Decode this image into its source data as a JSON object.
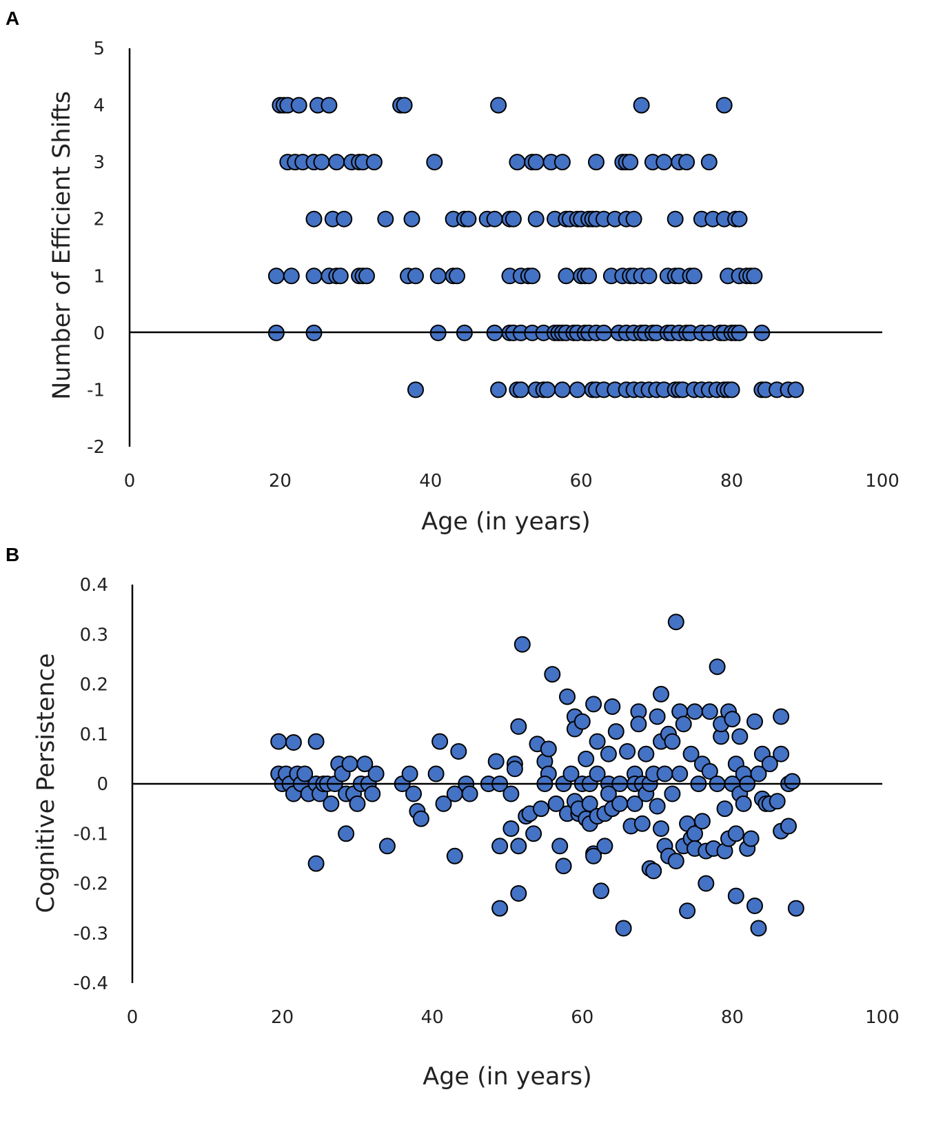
{
  "chart_data": [
    {
      "panel_label": "A",
      "type": "scatter",
      "title": "",
      "xlabel": "Age (in years)",
      "ylabel": "Number of Efficient Shifts",
      "xlim": [
        0,
        100
      ],
      "ylim": [
        -2,
        5
      ],
      "xticks": [
        "0",
        "20",
        "40",
        "60",
        "80",
        "100"
      ],
      "yticks": [
        "5",
        "4",
        "3",
        "2",
        "1",
        "0",
        "-1",
        "-2"
      ],
      "grid": false,
      "marker_color": "#4472c4",
      "points": [
        [
          20,
          4
        ],
        [
          20.5,
          4
        ],
        [
          21,
          4
        ],
        [
          22.5,
          4
        ],
        [
          25,
          4
        ],
        [
          26.5,
          4
        ],
        [
          36,
          4
        ],
        [
          36.5,
          4
        ],
        [
          49,
          4
        ],
        [
          68,
          4
        ],
        [
          79,
          4
        ],
        [
          21,
          3
        ],
        [
          22,
          3
        ],
        [
          23,
          3
        ],
        [
          24.5,
          3
        ],
        [
          25.5,
          3
        ],
        [
          27.5,
          3
        ],
        [
          29.5,
          3
        ],
        [
          30.5,
          3
        ],
        [
          31,
          3
        ],
        [
          32.5,
          3
        ],
        [
          40.5,
          3
        ],
        [
          51.5,
          3
        ],
        [
          53.5,
          3
        ],
        [
          54,
          3
        ],
        [
          56,
          3
        ],
        [
          57.5,
          3
        ],
        [
          62,
          3
        ],
        [
          65.5,
          3
        ],
        [
          66,
          3
        ],
        [
          66.5,
          3
        ],
        [
          69.5,
          3
        ],
        [
          71,
          3
        ],
        [
          73,
          3
        ],
        [
          74,
          3
        ],
        [
          77,
          3
        ],
        [
          24.5,
          2
        ],
        [
          27,
          2
        ],
        [
          28.5,
          2
        ],
        [
          34,
          2
        ],
        [
          37.5,
          2
        ],
        [
          43,
          2
        ],
        [
          44.5,
          2
        ],
        [
          45,
          2
        ],
        [
          47.5,
          2
        ],
        [
          48.5,
          2
        ],
        [
          50.5,
          2
        ],
        [
          51,
          2
        ],
        [
          54,
          2
        ],
        [
          56.5,
          2
        ],
        [
          58,
          2
        ],
        [
          58.5,
          2
        ],
        [
          59.5,
          2
        ],
        [
          60,
          2
        ],
        [
          61,
          2
        ],
        [
          61.5,
          2
        ],
        [
          62,
          2
        ],
        [
          63,
          2
        ],
        [
          64.5,
          2
        ],
        [
          66,
          2
        ],
        [
          67,
          2
        ],
        [
          72.5,
          2
        ],
        [
          76,
          2
        ],
        [
          77.5,
          2
        ],
        [
          79,
          2
        ],
        [
          80.5,
          2
        ],
        [
          81,
          2
        ],
        [
          19.5,
          1
        ],
        [
          21.5,
          1
        ],
        [
          24.5,
          1
        ],
        [
          26.5,
          1
        ],
        [
          27.5,
          1
        ],
        [
          28,
          1
        ],
        [
          30.5,
          1
        ],
        [
          31,
          1
        ],
        [
          31.5,
          1
        ],
        [
          37,
          1
        ],
        [
          38,
          1
        ],
        [
          41,
          1
        ],
        [
          43,
          1
        ],
        [
          43.5,
          1
        ],
        [
          50.5,
          1
        ],
        [
          52,
          1
        ],
        [
          53,
          1
        ],
        [
          53.5,
          1
        ],
        [
          58,
          1
        ],
        [
          60,
          1
        ],
        [
          60.5,
          1
        ],
        [
          61,
          1
        ],
        [
          64,
          1
        ],
        [
          65.5,
          1
        ],
        [
          66.5,
          1
        ],
        [
          67,
          1
        ],
        [
          68,
          1
        ],
        [
          69,
          1
        ],
        [
          71.5,
          1
        ],
        [
          72.5,
          1
        ],
        [
          73,
          1
        ],
        [
          74.5,
          1
        ],
        [
          75,
          1
        ],
        [
          79.5,
          1
        ],
        [
          81,
          1
        ],
        [
          82,
          1
        ],
        [
          82.5,
          1
        ],
        [
          83,
          1
        ],
        [
          19.5,
          0
        ],
        [
          24.5,
          0
        ],
        [
          41,
          0
        ],
        [
          44.5,
          0
        ],
        [
          48.5,
          0
        ],
        [
          50.5,
          0
        ],
        [
          51,
          0
        ],
        [
          52,
          0
        ],
        [
          53.5,
          0
        ],
        [
          55,
          0
        ],
        [
          56.5,
          0
        ],
        [
          57,
          0
        ],
        [
          57.5,
          0
        ],
        [
          58,
          0
        ],
        [
          59,
          0
        ],
        [
          59.5,
          0
        ],
        [
          60.5,
          0
        ],
        [
          61,
          0
        ],
        [
          62,
          0
        ],
        [
          63,
          0
        ],
        [
          65,
          0
        ],
        [
          66,
          0
        ],
        [
          67,
          0
        ],
        [
          68,
          0
        ],
        [
          68.5,
          0
        ],
        [
          69.5,
          0
        ],
        [
          70,
          0
        ],
        [
          71.5,
          0
        ],
        [
          72,
          0
        ],
        [
          73,
          0
        ],
        [
          74,
          0
        ],
        [
          74.5,
          0
        ],
        [
          76,
          0
        ],
        [
          77,
          0
        ],
        [
          78.5,
          0
        ],
        [
          79,
          0
        ],
        [
          80,
          0
        ],
        [
          80.5,
          0
        ],
        [
          81,
          0
        ],
        [
          84,
          0
        ],
        [
          38,
          -1
        ],
        [
          49,
          -1
        ],
        [
          51.5,
          -1
        ],
        [
          52,
          -1
        ],
        [
          54,
          -1
        ],
        [
          55,
          -1
        ],
        [
          55.5,
          -1
        ],
        [
          57.5,
          -1
        ],
        [
          59.5,
          -1
        ],
        [
          61.5,
          -1
        ],
        [
          62,
          -1
        ],
        [
          63,
          -1
        ],
        [
          64.5,
          -1
        ],
        [
          66,
          -1
        ],
        [
          67,
          -1
        ],
        [
          68,
          -1
        ],
        [
          69,
          -1
        ],
        [
          70,
          -1
        ],
        [
          71,
          -1
        ],
        [
          72.5,
          -1
        ],
        [
          73,
          -1
        ],
        [
          73.5,
          -1
        ],
        [
          75,
          -1
        ],
        [
          76,
          -1
        ],
        [
          77,
          -1
        ],
        [
          78,
          -1
        ],
        [
          79,
          -1
        ],
        [
          79.5,
          -1
        ],
        [
          80,
          -1
        ],
        [
          84,
          -1
        ],
        [
          84.5,
          -1
        ],
        [
          86,
          -1
        ],
        [
          87.5,
          -1
        ],
        [
          88.5,
          -1
        ]
      ]
    },
    {
      "panel_label": "B",
      "type": "scatter",
      "title": "",
      "xlabel": "Age (in years)",
      "ylabel": "Cognitive Persistence",
      "xlim": [
        0,
        100
      ],
      "ylim": [
        -0.4,
        0.4
      ],
      "xticks": [
        "0",
        "20",
        "40",
        "60",
        "80",
        "100"
      ],
      "yticks": [
        "0.4",
        "0.3",
        "0.2",
        "0.1",
        "0",
        "-0.1",
        "-0.2",
        "-0.3",
        "-0.4"
      ],
      "grid": false,
      "marker_color": "#4472c4",
      "points": [
        [
          19.5,
          0.085
        ],
        [
          21.5,
          0.083
        ],
        [
          24.5,
          0.085
        ],
        [
          19.5,
          0.02
        ],
        [
          20,
          0.0
        ],
        [
          20.5,
          0.02
        ],
        [
          21,
          0.0
        ],
        [
          21.5,
          -0.02
        ],
        [
          22,
          0.02
        ],
        [
          22.5,
          0.0
        ],
        [
          23,
          0.02
        ],
        [
          23.5,
          -0.02
        ],
        [
          24.5,
          0.0
        ],
        [
          25,
          -0.02
        ],
        [
          25.5,
          0.0
        ],
        [
          26,
          0.0
        ],
        [
          26.5,
          -0.04
        ],
        [
          27,
          0.0
        ],
        [
          27.5,
          0.04
        ],
        [
          28,
          0.02
        ],
        [
          28.5,
          -0.02
        ],
        [
          29,
          0.04
        ],
        [
          29.5,
          -0.02
        ],
        [
          30,
          -0.04
        ],
        [
          30.5,
          0.0
        ],
        [
          31,
          0.04
        ],
        [
          31.5,
          0.0
        ],
        [
          32,
          -0.02
        ],
        [
          32.5,
          0.02
        ],
        [
          24.5,
          -0.16
        ],
        [
          28.5,
          -0.1
        ],
        [
          34,
          -0.125
        ],
        [
          36,
          0.0
        ],
        [
          37,
          0.02
        ],
        [
          37.5,
          -0.02
        ],
        [
          38,
          -0.055
        ],
        [
          38.5,
          -0.07
        ],
        [
          40.5,
          0.02
        ],
        [
          41,
          0.085
        ],
        [
          41.5,
          -0.04
        ],
        [
          43,
          -0.02
        ],
        [
          43.5,
          0.065
        ],
        [
          44.5,
          0.0
        ],
        [
          45,
          -0.02
        ],
        [
          43,
          -0.145
        ],
        [
          47.5,
          0.0
        ],
        [
          48.5,
          0.045
        ],
        [
          49,
          0.0
        ],
        [
          49,
          -0.125
        ],
        [
          49,
          -0.25
        ],
        [
          50.5,
          -0.09
        ],
        [
          50.5,
          -0.02
        ],
        [
          51,
          0.04
        ],
        [
          51,
          0.03
        ],
        [
          51.5,
          0.115
        ],
        [
          51.5,
          -0.125
        ],
        [
          51.5,
          -0.22
        ],
        [
          52,
          0.28
        ],
        [
          52.5,
          -0.065
        ],
        [
          53,
          -0.06
        ],
        [
          53.5,
          -0.1
        ],
        [
          54,
          0.08
        ],
        [
          54.5,
          -0.05
        ],
        [
          55,
          0.045
        ],
        [
          55.5,
          0.02
        ],
        [
          55,
          0.0
        ],
        [
          55.5,
          0.07
        ],
        [
          56,
          0.22
        ],
        [
          56.5,
          -0.04
        ],
        [
          57,
          -0.125
        ],
        [
          57.5,
          -0.165
        ],
        [
          57.5,
          0.0
        ],
        [
          58,
          0.175
        ],
        [
          58,
          -0.06
        ],
        [
          58.5,
          0.02
        ],
        [
          59,
          0.135
        ],
        [
          59,
          0.11
        ],
        [
          59,
          -0.035
        ],
        [
          59.5,
          -0.06
        ],
        [
          59.5,
          -0.05
        ],
        [
          60,
          0.125
        ],
        [
          60,
          0.0
        ],
        [
          60.5,
          -0.07
        ],
        [
          60.5,
          0.05
        ],
        [
          61,
          -0.04
        ],
        [
          61,
          0.0
        ],
        [
          61,
          -0.08
        ],
        [
          61.5,
          0.16
        ],
        [
          61.5,
          -0.14
        ],
        [
          61.5,
          -0.145
        ],
        [
          62,
          0.02
        ],
        [
          62,
          -0.065
        ],
        [
          62.5,
          -0.215
        ],
        [
          62,
          0.085
        ],
        [
          63,
          -0.06
        ],
        [
          63,
          -0.125
        ],
        [
          63.5,
          0.06
        ],
        [
          63.5,
          0.0
        ],
        [
          63.5,
          -0.02
        ],
        [
          64,
          -0.05
        ],
        [
          64,
          0.155
        ],
        [
          64.5,
          0.105
        ],
        [
          65,
          -0.04
        ],
        [
          65,
          0.0
        ],
        [
          65.5,
          -0.29
        ],
        [
          66,
          0.065
        ],
        [
          66.5,
          -0.085
        ],
        [
          67,
          0.02
        ],
        [
          67,
          0.0
        ],
        [
          67,
          -0.04
        ],
        [
          67.5,
          0.145
        ],
        [
          67.5,
          0.12
        ],
        [
          68,
          -0.08
        ],
        [
          68,
          0.0
        ],
        [
          68.5,
          0.06
        ],
        [
          68.5,
          -0.02
        ],
        [
          69,
          0.0
        ],
        [
          69,
          -0.17
        ],
        [
          69.5,
          -0.175
        ],
        [
          69.5,
          0.02
        ],
        [
          70,
          0.135
        ],
        [
          70,
          -0.045
        ],
        [
          70.5,
          0.085
        ],
        [
          70.5,
          -0.09
        ],
        [
          70.5,
          0.18
        ],
        [
          71,
          -0.125
        ],
        [
          71,
          0.02
        ],
        [
          71.5,
          -0.145
        ],
        [
          71.5,
          0.1
        ],
        [
          72,
          0.085
        ],
        [
          72,
          -0.02
        ],
        [
          72.5,
          0.325
        ],
        [
          72.5,
          -0.155
        ],
        [
          73,
          0.145
        ],
        [
          73,
          0.02
        ],
        [
          73.5,
          0.12
        ],
        [
          73.5,
          -0.125
        ],
        [
          74,
          -0.255
        ],
        [
          74,
          -0.08
        ],
        [
          74.5,
          -0.11
        ],
        [
          74.5,
          0.06
        ],
        [
          75,
          -0.1
        ],
        [
          75,
          0.145
        ],
        [
          75,
          -0.13
        ],
        [
          75.5,
          0.0
        ],
        [
          76,
          0.04
        ],
        [
          76,
          -0.075
        ],
        [
          76.5,
          -0.2
        ],
        [
          76.5,
          -0.135
        ],
        [
          77,
          0.025
        ],
        [
          77,
          0.145
        ],
        [
          77.5,
          -0.13
        ],
        [
          78,
          0.235
        ],
        [
          78,
          0.0
        ],
        [
          78.5,
          0.095
        ],
        [
          78.5,
          0.12
        ],
        [
          79,
          -0.05
        ],
        [
          79,
          -0.135
        ],
        [
          79.5,
          -0.11
        ],
        [
          79.5,
          0.145
        ],
        [
          80,
          0.0
        ],
        [
          80,
          0.13
        ],
        [
          80.5,
          -0.225
        ],
        [
          80.5,
          -0.1
        ],
        [
          80.5,
          0.04
        ],
        [
          81,
          -0.02
        ],
        [
          81,
          0.095
        ],
        [
          81.5,
          -0.04
        ],
        [
          81.5,
          0.02
        ],
        [
          82,
          0.0
        ],
        [
          82,
          -0.13
        ],
        [
          82.5,
          -0.11
        ],
        [
          83,
          0.125
        ],
        [
          83,
          -0.245
        ],
        [
          83.5,
          -0.29
        ],
        [
          83.5,
          0.02
        ],
        [
          84,
          -0.03
        ],
        [
          84,
          0.06
        ],
        [
          84.5,
          -0.04
        ],
        [
          85,
          -0.04
        ],
        [
          85,
          0.04
        ],
        [
          86,
          -0.035
        ],
        [
          86.5,
          0.135
        ],
        [
          86.5,
          0.06
        ],
        [
          86.5,
          -0.095
        ],
        [
          87.5,
          0.0
        ],
        [
          87.5,
          -0.085
        ],
        [
          88,
          0.005
        ],
        [
          88.5,
          -0.25
        ]
      ]
    }
  ]
}
